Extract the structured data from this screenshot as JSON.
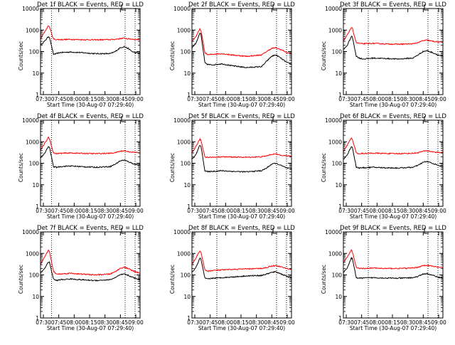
{
  "figure": {
    "ylabel": "Counts/sec",
    "xlabel": "Start Time (30-Aug-07 07:29:40)",
    "x_tick_labels": [
      "07:30",
      "07:45",
      "08:00",
      "08:15",
      "08:30",
      "08:45",
      "09:00"
    ],
    "y_tick_labels": [
      "1",
      "10",
      "100",
      "1000",
      "10000"
    ],
    "colors": {
      "black_series": "#000000",
      "red_series": "#ff0000",
      "axes": "#000000"
    }
  },
  "chart_data": [
    {
      "type": "line",
      "title": "Det 1f BLACK = Events, RED = LLD",
      "xlabel": "Start Time (30-Aug-07 07:29:40)",
      "ylabel": "Counts/sec",
      "xlim": [
        0,
        100
      ],
      "ylim": [
        1,
        10000
      ],
      "yscale": "log",
      "x": [
        0,
        4,
        8,
        9,
        13,
        16,
        20,
        30,
        40,
        55,
        70,
        75,
        80,
        84,
        88,
        92,
        95,
        100
      ],
      "series": [
        {
          "name": "Events",
          "color": "#000000",
          "values": [
            200,
            300,
            500,
            460,
            75,
            80,
            90,
            95,
            90,
            80,
            80,
            100,
            150,
            170,
            140,
            100,
            90,
            80
          ]
        },
        {
          "name": "LLD",
          "color": "#ff0000",
          "values": [
            400,
            800,
            1600,
            1400,
            380,
            360,
            360,
            370,
            360,
            350,
            360,
            370,
            400,
            420,
            390,
            380,
            370,
            360
          ]
        }
      ],
      "vlines": [
        11,
        85,
        95
      ]
    },
    {
      "type": "line",
      "title": "Det 2f BLACK = Events, RED = LLD",
      "xlabel": "Start Time (30-Aug-07 07:29:40)",
      "ylabel": "Counts/sec",
      "xlim": [
        0,
        100
      ],
      "ylim": [
        1,
        10000
      ],
      "yscale": "log",
      "x": [
        0,
        4,
        8,
        9,
        13,
        16,
        20,
        30,
        40,
        55,
        70,
        75,
        80,
        84,
        88,
        92,
        95,
        100
      ],
      "series": [
        {
          "name": "Events",
          "color": "#000000",
          "values": [
            150,
            250,
            700,
            650,
            30,
            25,
            24,
            27,
            22,
            18,
            20,
            35,
            60,
            70,
            55,
            40,
            32,
            25
          ]
        },
        {
          "name": "LLD",
          "color": "#ff0000",
          "values": [
            300,
            500,
            1100,
            1000,
            90,
            70,
            75,
            80,
            70,
            60,
            70,
            100,
            140,
            150,
            130,
            110,
            90,
            80
          ]
        }
      ],
      "vlines": [
        25,
        85,
        95
      ]
    },
    {
      "type": "line",
      "title": "Det 3f BLACK = Events, RED = LLD",
      "xlabel": "Start Time (30-Aug-07 07:29:40)",
      "ylabel": "Counts/sec",
      "xlim": [
        0,
        100
      ],
      "ylim": [
        1,
        10000
      ],
      "yscale": "log",
      "x": [
        0,
        4,
        8,
        9,
        13,
        16,
        20,
        30,
        40,
        55,
        70,
        75,
        80,
        84,
        88,
        92,
        95,
        100
      ],
      "series": [
        {
          "name": "Events",
          "color": "#000000",
          "values": [
            120,
            200,
            500,
            480,
            60,
            50,
            45,
            50,
            48,
            45,
            50,
            70,
            100,
            110,
            95,
            80,
            70,
            60
          ]
        },
        {
          "name": "LLD",
          "color": "#ff0000",
          "values": [
            300,
            600,
            1300,
            1200,
            260,
            240,
            230,
            240,
            230,
            220,
            230,
            260,
            320,
            340,
            310,
            290,
            280,
            270
          ]
        }
      ],
      "vlines": [
        25,
        85,
        95
      ]
    },
    {
      "type": "line",
      "title": "Det 4f BLACK = Events, RED = LLD",
      "xlabel": "Start Time (30-Aug-07 07:29:40)",
      "ylabel": "Counts/sec",
      "xlim": [
        0,
        100
      ],
      "ylim": [
        1,
        10000
      ],
      "yscale": "log",
      "x": [
        0,
        4,
        8,
        9,
        13,
        16,
        20,
        30,
        40,
        55,
        70,
        75,
        80,
        84,
        88,
        92,
        95,
        100
      ],
      "series": [
        {
          "name": "Events",
          "color": "#000000",
          "values": [
            180,
            280,
            600,
            550,
            70,
            65,
            70,
            75,
            70,
            65,
            70,
            90,
            130,
            140,
            120,
            100,
            90,
            80
          ]
        },
        {
          "name": "LLD",
          "color": "#ff0000",
          "values": [
            400,
            800,
            1600,
            1400,
            300,
            280,
            290,
            300,
            290,
            280,
            290,
            310,
            360,
            380,
            350,
            330,
            320,
            310
          ]
        }
      ],
      "vlines": [
        11,
        85,
        95
      ]
    },
    {
      "type": "line",
      "title": "Det 5f BLACK = Events, RED = LLD",
      "xlabel": "Start Time (30-Aug-07 07:29:40)",
      "ylabel": "Counts/sec",
      "xlim": [
        0,
        100
      ],
      "ylim": [
        1,
        10000
      ],
      "yscale": "log",
      "x": [
        0,
        4,
        8,
        9,
        13,
        16,
        20,
        30,
        40,
        55,
        70,
        75,
        80,
        84,
        88,
        92,
        95,
        100
      ],
      "series": [
        {
          "name": "Events",
          "color": "#000000",
          "values": [
            150,
            250,
            700,
            650,
            45,
            40,
            42,
            45,
            42,
            40,
            45,
            60,
            90,
            100,
            85,
            70,
            60,
            55
          ]
        },
        {
          "name": "LLD",
          "color": "#ff0000",
          "values": [
            300,
            600,
            1300,
            1200,
            200,
            190,
            190,
            200,
            195,
            190,
            200,
            220,
            260,
            270,
            250,
            230,
            220,
            210
          ]
        }
      ],
      "vlines": [
        25,
        85,
        95
      ]
    },
    {
      "type": "line",
      "title": "Det 6f BLACK = Events, RED = LLD",
      "xlabel": "Start Time (30-Aug-07 07:29:40)",
      "ylabel": "Counts/sec",
      "xlim": [
        0,
        100
      ],
      "ylim": [
        1,
        10000
      ],
      "yscale": "log",
      "x": [
        0,
        4,
        8,
        9,
        13,
        16,
        20,
        30,
        40,
        55,
        70,
        75,
        80,
        84,
        88,
        92,
        95,
        100
      ],
      "series": [
        {
          "name": "Events",
          "color": "#000000",
          "values": [
            150,
            250,
            600,
            560,
            65,
            60,
            62,
            65,
            62,
            60,
            65,
            80,
            110,
            120,
            105,
            90,
            80,
            70
          ]
        },
        {
          "name": "LLD",
          "color": "#ff0000",
          "values": [
            350,
            700,
            1500,
            1350,
            300,
            280,
            285,
            295,
            285,
            280,
            290,
            310,
            360,
            380,
            350,
            330,
            320,
            310
          ]
        }
      ],
      "vlines": [
        25,
        85,
        95
      ]
    },
    {
      "type": "line",
      "title": "Det 7f BLACK = Events, RED = LLD",
      "xlabel": "Start Time (30-Aug-07 07:29:40)",
      "ylabel": "Counts/sec",
      "xlim": [
        0,
        100
      ],
      "ylim": [
        1,
        10000
      ],
      "yscale": "log",
      "x": [
        0,
        4,
        8,
        9,
        13,
        16,
        20,
        30,
        40,
        55,
        70,
        75,
        80,
        84,
        88,
        92,
        95,
        100
      ],
      "series": [
        {
          "name": "Events",
          "color": "#000000",
          "values": [
            120,
            200,
            400,
            380,
            65,
            55,
            60,
            65,
            60,
            55,
            60,
            75,
            100,
            110,
            95,
            80,
            70,
            60
          ]
        },
        {
          "name": "LLD",
          "color": "#ff0000",
          "values": [
            300,
            700,
            1400,
            1200,
            150,
            110,
            110,
            120,
            110,
            100,
            110,
            140,
            200,
            230,
            200,
            160,
            140,
            120
          ]
        }
      ],
      "vlines": [
        11,
        85,
        95
      ]
    },
    {
      "type": "line",
      "title": "Det 8f BLACK = Events, RED = LLD",
      "xlabel": "Start Time (30-Aug-07 07:29:40)",
      "ylabel": "Counts/sec",
      "xlim": [
        0,
        100
      ],
      "ylim": [
        1,
        10000
      ],
      "yscale": "log",
      "x": [
        0,
        4,
        8,
        9,
        13,
        16,
        20,
        30,
        40,
        55,
        70,
        75,
        80,
        84,
        88,
        92,
        95,
        100
      ],
      "series": [
        {
          "name": "Events",
          "color": "#000000",
          "values": [
            130,
            220,
            600,
            550,
            70,
            65,
            70,
            75,
            80,
            90,
            95,
            110,
            130,
            140,
            120,
            100,
            90,
            70
          ]
        },
        {
          "name": "LLD",
          "color": "#ff0000",
          "values": [
            300,
            600,
            1300,
            1200,
            170,
            150,
            160,
            170,
            180,
            190,
            200,
            220,
            260,
            270,
            250,
            220,
            200,
            180
          ]
        }
      ],
      "vlines": [
        25,
        85,
        95
      ]
    },
    {
      "type": "line",
      "title": "Det 9f BLACK = Events, RED = LLD",
      "xlabel": "Start Time (30-Aug-07 07:29:40)",
      "ylabel": "Counts/sec",
      "xlim": [
        0,
        100
      ],
      "ylim": [
        1,
        10000
      ],
      "yscale": "log",
      "x": [
        0,
        4,
        8,
        9,
        13,
        16,
        20,
        30,
        40,
        55,
        70,
        75,
        80,
        84,
        88,
        92,
        95,
        100
      ],
      "series": [
        {
          "name": "Events",
          "color": "#000000",
          "values": [
            130,
            220,
            600,
            560,
            75,
            70,
            72,
            75,
            72,
            70,
            75,
            85,
            110,
            115,
            100,
            90,
            80,
            70
          ]
        },
        {
          "name": "LLD",
          "color": "#ff0000",
          "values": [
            350,
            700,
            1400,
            1250,
            220,
            200,
            200,
            210,
            200,
            200,
            210,
            230,
            270,
            280,
            260,
            240,
            230,
            220
          ]
        }
      ],
      "vlines": [
        25,
        85,
        95
      ]
    }
  ]
}
